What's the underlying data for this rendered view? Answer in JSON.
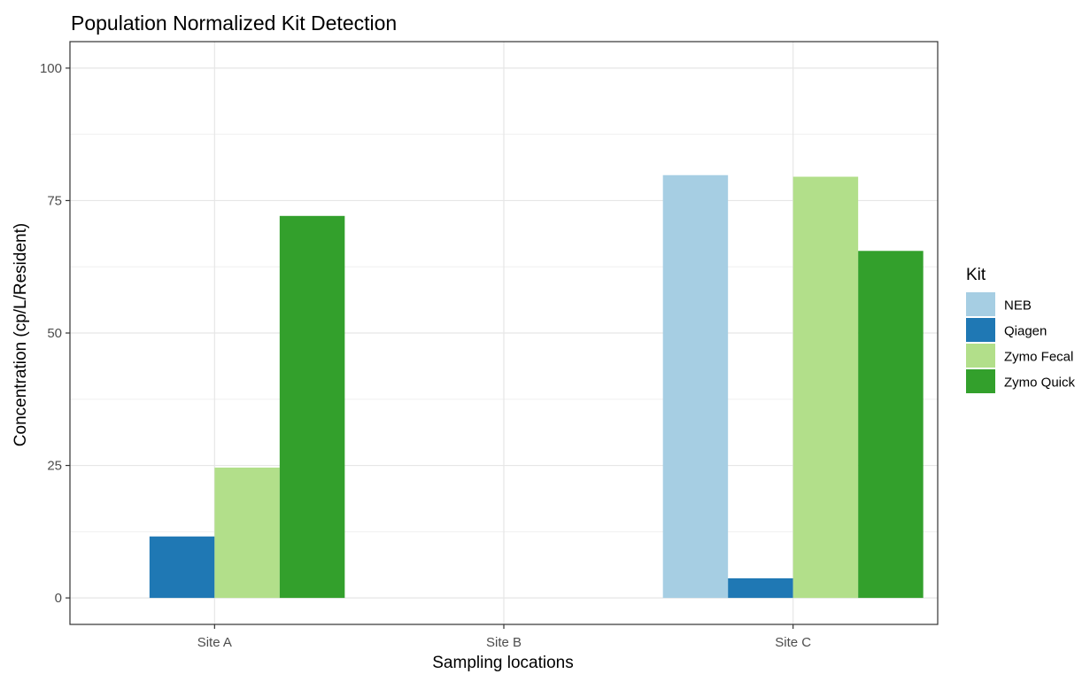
{
  "chart_data": {
    "type": "bar",
    "title": "Population Normalized Kit Detection",
    "xlabel": "Sampling locations",
    "ylabel": "Concentration (cp/L/Resident)",
    "categories": [
      "Site A",
      "Site B",
      "Site C"
    ],
    "ylim": [
      -5,
      105
    ],
    "yticks": [
      0,
      25,
      50,
      75,
      100
    ],
    "grid": true,
    "legend": {
      "title": "Kit",
      "placement": "right"
    },
    "series": [
      {
        "name": "NEB",
        "color": "#a6cee3",
        "values": [
          0,
          0,
          79.8
        ]
      },
      {
        "name": "Qiagen",
        "color": "#1f78b4",
        "values": [
          11.6,
          0,
          3.7
        ]
      },
      {
        "name": "Zymo Fecal",
        "color": "#b2df8a",
        "values": [
          24.6,
          0,
          79.5
        ]
      },
      {
        "name": "Zymo Quick",
        "color": "#33a02c",
        "values": [
          72.1,
          0,
          65.5
        ]
      }
    ]
  }
}
